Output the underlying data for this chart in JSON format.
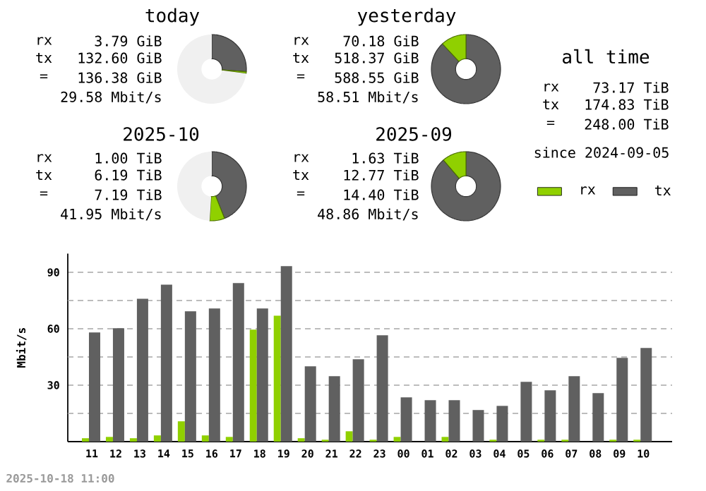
{
  "chart_data": [
    {
      "type": "donut",
      "title": "today",
      "categories": [
        null,
        null,
        null
      ],
      "values": [
        26.2,
        0.8,
        73
      ],
      "colors": [
        "#606060",
        "#90d000",
        "#f0f0f0"
      ],
      "annotations": [
        "rx",
        "3.79 GiB",
        "tx",
        "132.60 GiB",
        "=",
        "136.38 GiB",
        "29.58 Mbit/s"
      ]
    },
    {
      "type": "donut",
      "title": "yesterday",
      "categories": [
        null,
        null
      ],
      "values": [
        88.1,
        11.9
      ],
      "colors": [
        "#606060",
        "#90d000"
      ],
      "annotations": [
        "rx",
        "70.18 GiB",
        "tx",
        "518.37 GiB",
        "=",
        "588.55 GiB",
        "58.51 Mbit/s"
      ]
    },
    {
      "type": "other",
      "title": "all time",
      "annotations": [
        "rx",
        "73.17 TiB",
        "tx",
        "174.83 TiB",
        "=",
        "248.00 TiB",
        "since 2024-09-05"
      ]
    },
    {
      "type": "donut",
      "title": "2025-10",
      "categories": [
        null,
        null,
        null
      ],
      "values": [
        44,
        7,
        49
      ],
      "colors": [
        "#606060",
        "#90d000",
        "#f0f0f0"
      ],
      "annotations": [
        "rx",
        "1.00 TiB",
        "tx",
        "6.19 TiB",
        "=",
        "7.19 TiB",
        "41.95 Mbit/s"
      ]
    },
    {
      "type": "donut",
      "title": "2025-09",
      "categories": [
        null,
        null
      ],
      "values": [
        88.7,
        11.3
      ],
      "colors": [
        "#606060",
        "#90d000"
      ],
      "annotations": [
        "rx",
        "1.63 TiB",
        "tx",
        "12.77 TiB",
        "=",
        "14.40 TiB",
        "48.86 Mbit/s"
      ]
    },
    {
      "type": "bar",
      "ylabel": "Mbit/s",
      "categories": [
        "11",
        "12",
        "13",
        "14",
        "15",
        "16",
        "17",
        "18",
        "19",
        "20",
        "21",
        "22",
        "23",
        "00",
        "01",
        "02",
        "03",
        "04",
        "05",
        "06",
        "07",
        "08",
        "09",
        "10"
      ],
      "series": [
        {
          "name": "rx",
          "color": "#90d000",
          "values": [
            1.8,
            2.5,
            1.8,
            3.3,
            10.8,
            3.3,
            2.5,
            59.5,
            67,
            1.8,
            1,
            5.5,
            1,
            2.5,
            0,
            2.5,
            0,
            1,
            0,
            1,
            1,
            0,
            1,
            1
          ]
        },
        {
          "name": "tx",
          "color": "#606060",
          "values": [
            58,
            60.3,
            76,
            83.5,
            69.3,
            70.8,
            84.3,
            70.8,
            93.3,
            40,
            34.8,
            43.8,
            56.5,
            23.5,
            22,
            22,
            16.8,
            19,
            31.8,
            27.3,
            34.8,
            25.8,
            44.5,
            49.8
          ]
        }
      ],
      "ylim": [
        0,
        100
      ],
      "yticks": [
        {
          "value": 15,
          "label": null
        },
        30,
        {
          "value": 45,
          "label": null
        },
        60,
        {
          "value": 75,
          "label": null
        },
        90
      ],
      "grid": "y",
      "legend": "top right",
      "annotations": [
        "2025-10-18 11:00"
      ]
    }
  ]
}
